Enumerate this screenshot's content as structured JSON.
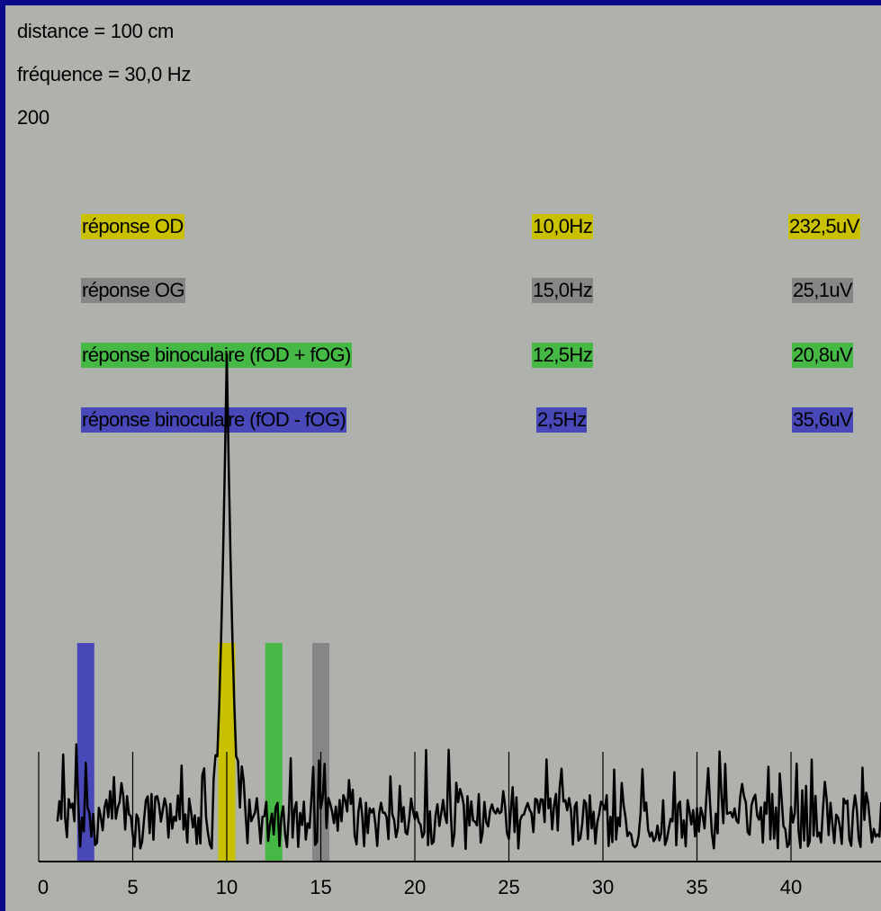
{
  "info": {
    "distance": "distance = 100 cm",
    "frequence": "fréquence = 30,0 Hz",
    "scale": "200"
  },
  "responses": [
    {
      "label": "réponse OD",
      "freq": "10,0Hz",
      "amp": "232,5uV",
      "color": "#c8c000"
    },
    {
      "label": "réponse OG",
      "freq": "15,0Hz",
      "amp": "25,1uV",
      "color": "#868686"
    },
    {
      "label": "réponse binoculaire (fOD + fOG)",
      "freq": "12,5Hz",
      "amp": "20,8uV",
      "color": "#46b846"
    },
    {
      "label": "réponse binoculaire (fOD - fOG)",
      "freq": "2,5Hz",
      "amp": "35,6uV",
      "color": "#4848b8"
    }
  ],
  "chart_data": {
    "type": "line",
    "x_ticks": [
      "0",
      "5",
      "10",
      "15",
      "20",
      "25",
      "30",
      "35",
      "40"
    ],
    "xlim": [
      0,
      45
    ],
    "markers": [
      {
        "x": 2.5,
        "color": "#4848b8"
      },
      {
        "x": 10.0,
        "color": "#c8c000"
      },
      {
        "x": 12.5,
        "color": "#46b846"
      },
      {
        "x": 15.0,
        "color": "#868686"
      }
    ],
    "peak": {
      "x": 10.0,
      "y": 232.5
    }
  }
}
